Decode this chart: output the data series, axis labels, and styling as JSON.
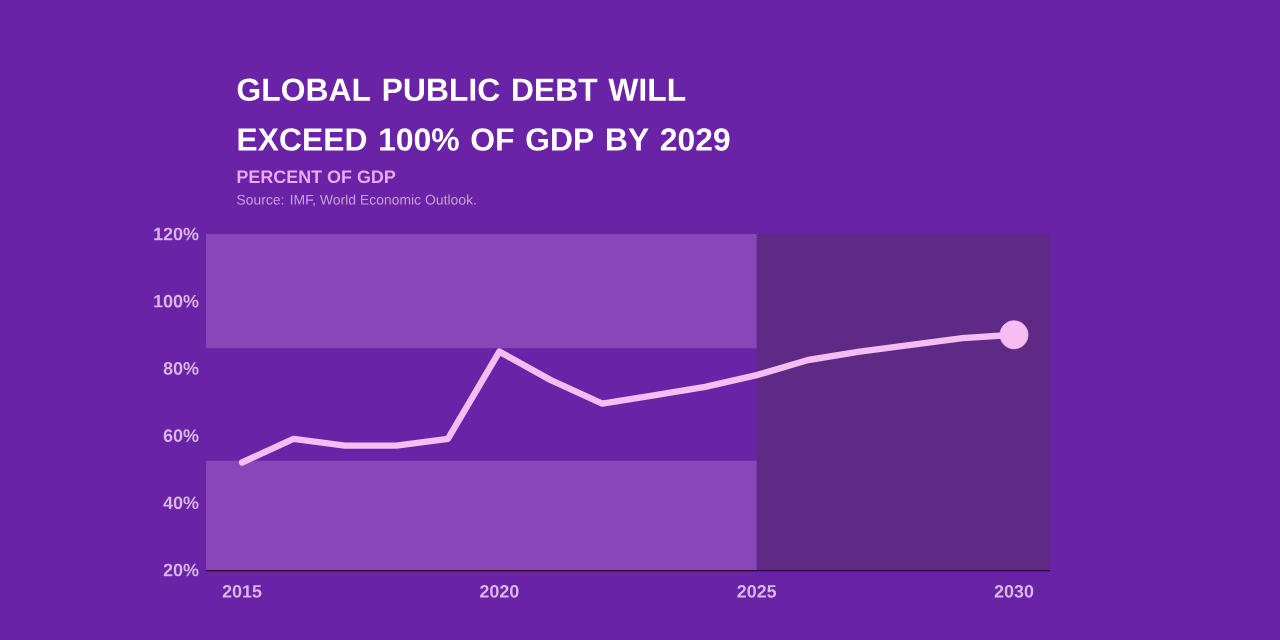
{
  "chart_data": {
    "type": "line",
    "title": "GLOBAL PUBLIC DEBT WILL EXCEED 100% OF GDP BY 2029",
    "subtitle": "PERCENT OF GDP",
    "annotations": [
      "Source: IMF, World Economic Outlook."
    ],
    "series": [
      {
        "color": "#f7bdf3",
        "x": [
          2015,
          2016,
          2017,
          2018,
          2019,
          2020,
          2021,
          2022,
          2023,
          2024,
          2025,
          2026,
          2027,
          2028,
          2029,
          2030
        ],
        "values": [
          52,
          59,
          57,
          57,
          59,
          85,
          76.5,
          69.5,
          72,
          74.5,
          78,
          82.5,
          85,
          87,
          89,
          90
        ]
      },
      {
        "type": "scatter",
        "color": "#f7bdf3",
        "marker": "circle",
        "x": [
          2030
        ],
        "values": [
          90
        ]
      }
    ],
    "xlim": [
      2014.3,
      2030.7
    ],
    "ylim": [
      20,
      120
    ],
    "xticks": [
      2015,
      2020,
      2025,
      2030
    ],
    "yticks": [
      {
        "value": 20,
        "label": "20%"
      },
      {
        "value": 40,
        "label": "40%"
      },
      {
        "value": 60,
        "label": "60%"
      },
      {
        "value": 80,
        "label": "80%"
      },
      {
        "value": 100,
        "label": "100%"
      },
      {
        "value": 120,
        "label": "120%"
      }
    ],
    "marker": "none",
    "grid": false,
    "bands": [
      {
        "axis": "y",
        "from": 20,
        "to": 52.5,
        "color": "#8846b8"
      },
      {
        "axis": "y",
        "from": 86,
        "to": 120,
        "color": "#8846b8"
      },
      {
        "axis": "x",
        "from": 2025,
        "to": 2030.7,
        "color": "#5e2a86"
      }
    ]
  }
}
